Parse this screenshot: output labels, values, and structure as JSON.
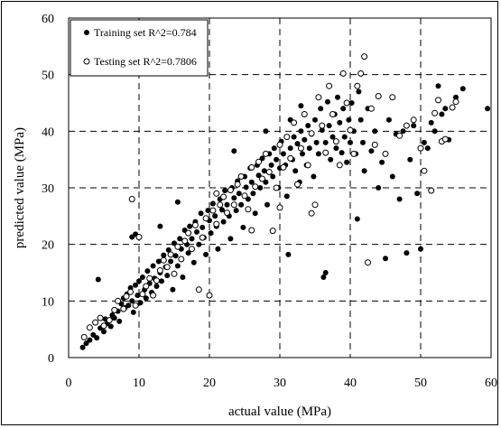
{
  "chart_data": {
    "type": "scatter",
    "xlabel": "actual value (MPa)",
    "ylabel": "predicted value (MPa)",
    "xlim": [
      0,
      60
    ],
    "ylim": [
      0,
      60
    ],
    "xticks": [
      "0",
      "10",
      "20",
      "30",
      "40",
      "50",
      "60"
    ],
    "yticks": [
      "0",
      "10",
      "20",
      "30",
      "40",
      "50",
      "60"
    ],
    "grid": "dashed",
    "legend_position": "top-left",
    "series": [
      {
        "name": "Training set R^2=0.784",
        "marker": "filled-circle",
        "color": "#000000",
        "points": [
          [
            2.0,
            1.8
          ],
          [
            2.5,
            2.5
          ],
          [
            3.0,
            3.1
          ],
          [
            3.5,
            4.0
          ],
          [
            4.0,
            3.5
          ],
          [
            4.5,
            5.2
          ],
          [
            5.0,
            4.6
          ],
          [
            5.2,
            6.8
          ],
          [
            5.5,
            6.0
          ],
          [
            6.0,
            5.5
          ],
          [
            6.2,
            7.5
          ],
          [
            6.5,
            7.0
          ],
          [
            7.0,
            8.2
          ],
          [
            7.2,
            6.4
          ],
          [
            7.5,
            9.5
          ],
          [
            7.8,
            10.5
          ],
          [
            8.0,
            8.8
          ],
          [
            8.3,
            11.2
          ],
          [
            8.5,
            9.2
          ],
          [
            8.8,
            12.3
          ],
          [
            9.0,
            10.0
          ],
          [
            9.2,
            8.0
          ],
          [
            9.5,
            12.8
          ],
          [
            9.8,
            11.0
          ],
          [
            10.0,
            13.5
          ],
          [
            10.2,
            9.7
          ],
          [
            10.5,
            14.2
          ],
          [
            10.8,
            12.0
          ],
          [
            11.0,
            10.5
          ],
          [
            11.2,
            15.3
          ],
          [
            11.5,
            13.1
          ],
          [
            11.8,
            11.5
          ],
          [
            12.0,
            16.2
          ],
          [
            12.2,
            14.0
          ],
          [
            12.5,
            12.6
          ],
          [
            12.8,
            17.0
          ],
          [
            13.0,
            15.0
          ],
          [
            13.2,
            13.5
          ],
          [
            13.5,
            18.1
          ],
          [
            13.8,
            16.0
          ],
          [
            14.0,
            14.5
          ],
          [
            14.2,
            19.0
          ],
          [
            14.5,
            17.0
          ],
          [
            14.8,
            12.0
          ],
          [
            15.0,
            20.2
          ],
          [
            15.2,
            18.0
          ],
          [
            15.5,
            16.2
          ],
          [
            15.8,
            21.0
          ],
          [
            16.0,
            19.2
          ],
          [
            16.2,
            14.2
          ],
          [
            16.5,
            22.5
          ],
          [
            16.8,
            20.0
          ],
          [
            17.0,
            18.5
          ],
          [
            17.2,
            23.2
          ],
          [
            17.5,
            21.0
          ],
          [
            17.8,
            16.8
          ],
          [
            18.0,
            24.0
          ],
          [
            18.2,
            22.2
          ],
          [
            18.5,
            20.0
          ],
          [
            18.8,
            25.5
          ],
          [
            19.0,
            23.0
          ],
          [
            19.2,
            21.2
          ],
          [
            19.5,
            18.2
          ],
          [
            19.8,
            26.0
          ],
          [
            20.0,
            24.2
          ],
          [
            20.2,
            22.0
          ],
          [
            20.5,
            27.2
          ],
          [
            20.8,
            25.0
          ],
          [
            21.0,
            23.2
          ],
          [
            21.2,
            19.2
          ],
          [
            21.5,
            28.0
          ],
          [
            21.8,
            26.1
          ],
          [
            22.0,
            24.0
          ],
          [
            22.2,
            29.5
          ],
          [
            22.5,
            27.0
          ],
          [
            22.8,
            25.0
          ],
          [
            23.0,
            21.0
          ],
          [
            23.2,
            30.0
          ],
          [
            23.5,
            28.2
          ],
          [
            23.8,
            26.0
          ],
          [
            24.0,
            31.2
          ],
          [
            24.2,
            29.0
          ],
          [
            24.5,
            27.0
          ],
          [
            24.8,
            23.0
          ],
          [
            25.0,
            32.0
          ],
          [
            25.2,
            30.1
          ],
          [
            25.5,
            28.0
          ],
          [
            25.8,
            33.5
          ],
          [
            26.0,
            31.0
          ],
          [
            26.2,
            29.0
          ],
          [
            26.5,
            25.5
          ],
          [
            26.8,
            34.0
          ],
          [
            27.0,
            32.2
          ],
          [
            27.2,
            30.0
          ],
          [
            27.5,
            35.2
          ],
          [
            27.8,
            33.0
          ],
          [
            28.0,
            31.0
          ],
          [
            28.2,
            27.0
          ],
          [
            28.5,
            36.0
          ],
          [
            28.8,
            34.0
          ],
          [
            29.0,
            32.0
          ],
          [
            29.2,
            37.0
          ],
          [
            29.5,
            35.0
          ],
          [
            29.8,
            30.0
          ],
          [
            30.0,
            33.5
          ],
          [
            30.2,
            38.2
          ],
          [
            30.5,
            36.0
          ],
          [
            30.8,
            34.0
          ],
          [
            31.0,
            28.5
          ],
          [
            31.2,
            18.2
          ],
          [
            31.5,
            37.0
          ],
          [
            31.8,
            35.0
          ],
          [
            32.0,
            39.0
          ],
          [
            32.2,
            33.0
          ],
          [
            32.5,
            37.8
          ],
          [
            32.8,
            31.0
          ],
          [
            33.0,
            40.0
          ],
          [
            33.2,
            36.0
          ],
          [
            33.5,
            38.5
          ],
          [
            33.8,
            34.0
          ],
          [
            34.0,
            41.0
          ],
          [
            34.2,
            37.0
          ],
          [
            34.5,
            39.5
          ],
          [
            34.8,
            32.0
          ],
          [
            35.0,
            42.0
          ],
          [
            35.2,
            38.0
          ],
          [
            35.5,
            36.0
          ],
          [
            35.8,
            44.0
          ],
          [
            36.0,
            40.2
          ],
          [
            36.2,
            14.2
          ],
          [
            36.5,
            38.0
          ],
          [
            36.8,
            45.2
          ],
          [
            37.0,
            41.0
          ],
          [
            37.2,
            35.0
          ],
          [
            37.5,
            39.0
          ],
          [
            37.8,
            43.0
          ],
          [
            38.0,
            37.0
          ],
          [
            38.2,
            46.0
          ],
          [
            38.5,
            41.5
          ],
          [
            38.8,
            36.2
          ],
          [
            39.0,
            44.0
          ],
          [
            39.2,
            39.0
          ],
          [
            39.5,
            34.5
          ],
          [
            39.8,
            42.0
          ],
          [
            40.0,
            38.0
          ],
          [
            40.2,
            45.0
          ],
          [
            40.5,
            40.0
          ],
          [
            40.8,
            36.0
          ],
          [
            41.0,
            24.5
          ],
          [
            41.2,
            47.0
          ],
          [
            41.5,
            42.0
          ],
          [
            41.8,
            38.0
          ],
          [
            42.0,
            33.0
          ],
          [
            42.5,
            44.0
          ],
          [
            43.0,
            36.5
          ],
          [
            43.5,
            40.0
          ],
          [
            44.0,
            30.0
          ],
          [
            44.5,
            34.5
          ],
          [
            45.0,
            17.5
          ],
          [
            45.5,
            42.0
          ],
          [
            46.0,
            32.0
          ],
          [
            46.5,
            39.5
          ],
          [
            47.0,
            28.0
          ],
          [
            47.5,
            40.0
          ],
          [
            48.0,
            18.5
          ],
          [
            48.5,
            35.0
          ],
          [
            49.0,
            41.0
          ],
          [
            49.5,
            29.0
          ],
          [
            50.0,
            19.2
          ],
          [
            50.5,
            38.0
          ],
          [
            51.0,
            37.0
          ],
          [
            51.5,
            41.5
          ],
          [
            52.0,
            40.0
          ],
          [
            52.5,
            48.0
          ],
          [
            53.0,
            43.0
          ],
          [
            53.5,
            44.0
          ],
          [
            54.0,
            38.5
          ],
          [
            55.0,
            46.0
          ],
          [
            56.0,
            47.5
          ],
          [
            59.5,
            44.0
          ],
          [
            4.2,
            13.8
          ],
          [
            9.0,
            21.3
          ],
          [
            9.5,
            21.8
          ],
          [
            13.0,
            23.2
          ],
          [
            15.5,
            27.5
          ],
          [
            23.5,
            36.5
          ],
          [
            28.0,
            40.0
          ],
          [
            31.5,
            42.0
          ],
          [
            33.0,
            44.5
          ],
          [
            36.5,
            15.0
          ]
        ]
      },
      {
        "name": "Testing set R^2=0.7806",
        "marker": "open-circle",
        "color": "#000000",
        "points": [
          [
            2.2,
            3.6
          ],
          [
            3.0,
            5.3
          ],
          [
            3.8,
            6.2
          ],
          [
            4.5,
            7.0
          ],
          [
            5.0,
            5.6
          ],
          [
            5.8,
            6.6
          ],
          [
            6.5,
            8.4
          ],
          [
            7.0,
            10.0
          ],
          [
            7.8,
            8.6
          ],
          [
            8.2,
            10.8
          ],
          [
            8.8,
            11.6
          ],
          [
            9.0,
            28.0
          ],
          [
            9.5,
            9.2
          ],
          [
            10.0,
            21.3
          ],
          [
            10.5,
            11.2
          ],
          [
            11.0,
            12.6
          ],
          [
            11.5,
            14.0
          ],
          [
            12.0,
            11.0
          ],
          [
            12.5,
            13.6
          ],
          [
            13.0,
            15.4
          ],
          [
            13.5,
            17.2
          ],
          [
            14.0,
            16.0
          ],
          [
            14.5,
            18.2
          ],
          [
            15.0,
            14.8
          ],
          [
            15.5,
            19.6
          ],
          [
            16.0,
            17.4
          ],
          [
            16.5,
            20.6
          ],
          [
            17.0,
            22.0
          ],
          [
            17.5,
            19.2
          ],
          [
            18.0,
            23.4
          ],
          [
            18.5,
            12.0
          ],
          [
            19.0,
            21.2
          ],
          [
            19.5,
            24.6
          ],
          [
            20.0,
            11.0
          ],
          [
            20.5,
            26.0
          ],
          [
            21.0,
            23.6
          ],
          [
            21.5,
            27.0
          ],
          [
            22.0,
            28.4
          ],
          [
            22.5,
            25.6
          ],
          [
            23.0,
            29.6
          ],
          [
            23.5,
            27.0
          ],
          [
            24.0,
            30.6
          ],
          [
            24.5,
            32.0
          ],
          [
            25.0,
            28.6
          ],
          [
            25.5,
            26.2
          ],
          [
            26.0,
            33.6
          ],
          [
            26.5,
            30.2
          ],
          [
            27.0,
            34.6
          ],
          [
            27.5,
            31.6
          ],
          [
            28.0,
            36.0
          ],
          [
            28.5,
            32.8
          ],
          [
            29.0,
            22.4
          ],
          [
            29.5,
            30.0
          ],
          [
            30.0,
            37.6
          ],
          [
            30.5,
            33.6
          ],
          [
            31.0,
            39.0
          ],
          [
            31.5,
            35.2
          ],
          [
            32.0,
            41.5
          ],
          [
            32.5,
            30.6
          ],
          [
            33.0,
            37.0
          ],
          [
            33.5,
            43.0
          ],
          [
            34.0,
            34.0
          ],
          [
            34.5,
            39.6
          ],
          [
            35.0,
            27.0
          ],
          [
            35.5,
            46.0
          ],
          [
            36.0,
            41.0
          ],
          [
            36.5,
            36.2
          ],
          [
            37.0,
            48.0
          ],
          [
            37.5,
            43.0
          ],
          [
            38.0,
            38.2
          ],
          [
            38.5,
            34.0
          ],
          [
            39.0,
            50.2
          ],
          [
            39.5,
            45.0
          ],
          [
            40.0,
            40.2
          ],
          [
            40.5,
            36.0
          ],
          [
            41.0,
            48.0
          ],
          [
            41.5,
            50.2
          ],
          [
            42.0,
            53.2
          ],
          [
            42.5,
            16.8
          ],
          [
            43.0,
            44.0
          ],
          [
            43.5,
            37.6
          ],
          [
            44.0,
            46.2
          ],
          [
            45.0,
            36.0
          ],
          [
            46.0,
            46.0
          ],
          [
            47.0,
            39.2
          ],
          [
            48.0,
            41.0
          ],
          [
            49.0,
            42.0
          ],
          [
            50.0,
            37.0
          ],
          [
            50.5,
            33.0
          ],
          [
            51.5,
            29.5
          ],
          [
            52.0,
            43.2
          ],
          [
            52.5,
            45.5
          ],
          [
            53.0,
            38.2
          ],
          [
            53.5,
            38.6
          ],
          [
            54.5,
            44.2
          ],
          [
            55.0,
            45.2
          ],
          [
            21.0,
            29.0
          ],
          [
            26.0,
            22.5
          ],
          [
            30.0,
            26.5
          ],
          [
            34.5,
            25.5
          ]
        ]
      }
    ]
  }
}
